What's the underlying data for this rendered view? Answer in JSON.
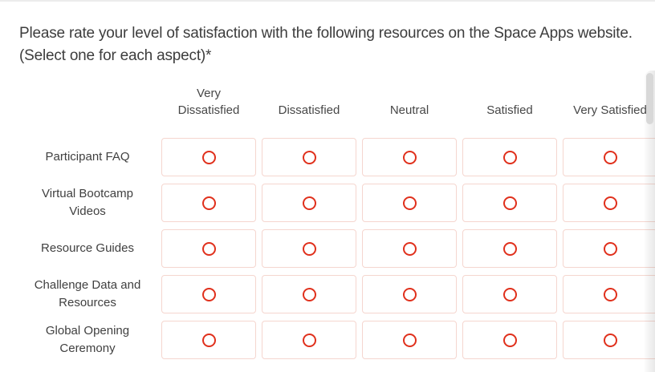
{
  "question": {
    "title": "Please rate your level of satisfaction with the following resources on the Space Apps website. (Select one for each aspect)*"
  },
  "matrix": {
    "columns": [
      {
        "label": "Very Dissatisfied",
        "lines": [
          "Very",
          "Dissatisfied"
        ]
      },
      {
        "label": "Dissatisfied",
        "lines": [
          "Dissatisfied"
        ]
      },
      {
        "label": "Neutral",
        "lines": [
          "Neutral"
        ]
      },
      {
        "label": "Satisfied",
        "lines": [
          "Satisfied"
        ]
      },
      {
        "label": "Very Satisfied",
        "lines": [
          "Very Satisfied"
        ]
      }
    ],
    "rows": [
      {
        "label": "Participant FAQ"
      },
      {
        "label": "Virtual Bootcamp Videos"
      },
      {
        "label": "Resource Guides"
      },
      {
        "label": "Challenge Data and Resources"
      },
      {
        "label": "Global Opening Ceremony"
      }
    ],
    "radio_state": "unselected"
  },
  "colors": {
    "accent_red": "#e0301c",
    "cell_border": "#f5d6cf",
    "title_text": "#3d3d3d",
    "label_text": "#404040",
    "header_text": "#474747",
    "top_divider": "#ececec",
    "scrollbar_thumb": "#d8d8d8"
  }
}
